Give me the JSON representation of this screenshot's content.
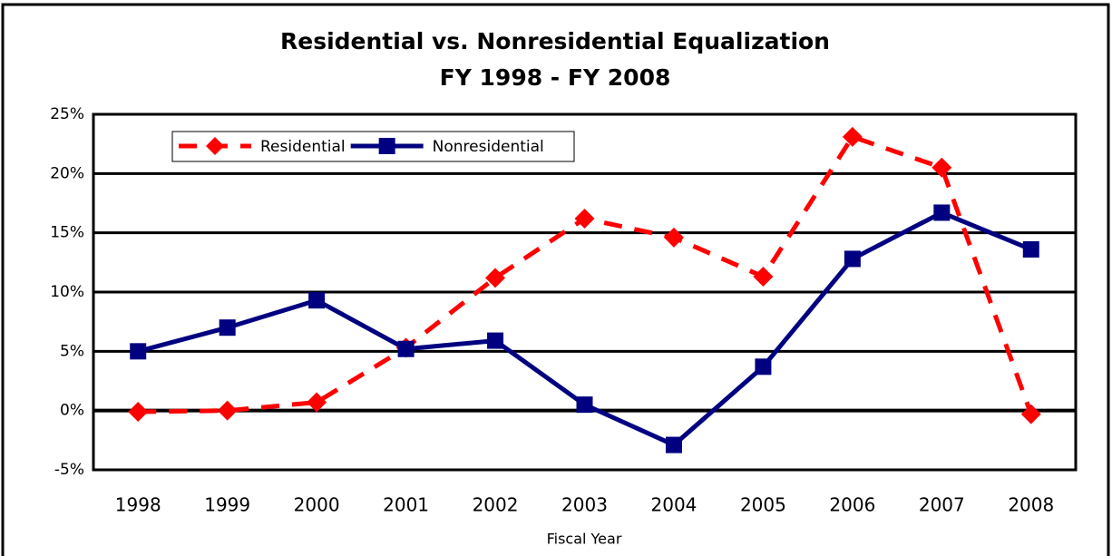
{
  "chart_data": {
    "type": "line",
    "title": "Residential vs. Nonresidential Equalization",
    "subtitle": "FY 1998 - FY 2008",
    "x_label": "Fiscal Year",
    "categories": [
      "1998",
      "1999",
      "2000",
      "2001",
      "2002",
      "2003",
      "2004",
      "2005",
      "2006",
      "2007",
      "2008"
    ],
    "series": [
      {
        "name": "Residential",
        "color": "#ff0000",
        "line_style": "dashed",
        "marker": "diamond",
        "values": [
          -0.1,
          0,
          0.7,
          5.3,
          11.2,
          16.2,
          14.6,
          11.3,
          23.1,
          20.5,
          -0.3
        ]
      },
      {
        "name": "Nonresidential",
        "color": "#000080",
        "line_style": "solid",
        "marker": "square",
        "values": [
          5.0,
          7.0,
          9.3,
          5.2,
          5.9,
          0.5,
          -2.9,
          3.7,
          12.8,
          16.7,
          13.6
        ]
      }
    ],
    "ylim": [
      -5,
      25
    ],
    "yticks": [
      {
        "value": -5,
        "label": "-5%"
      },
      {
        "value": 0,
        "label": "0%"
      },
      {
        "value": 5,
        "label": "5%"
      },
      {
        "value": 10,
        "label": "10%"
      },
      {
        "value": 15,
        "label": "15%"
      },
      {
        "value": 20,
        "label": "20%"
      },
      {
        "value": 25,
        "label": "25%"
      }
    ],
    "grid": true
  }
}
